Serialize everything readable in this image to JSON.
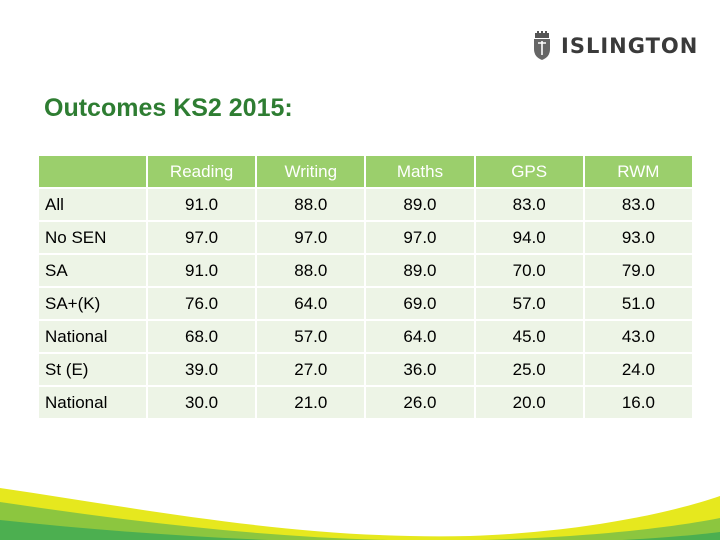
{
  "brand": {
    "name": "ISLINGTON",
    "colors": {
      "title": "#2e7d32",
      "header_fill": "#9bcf6c",
      "row_fill": "#edf4e6",
      "swoosh_green": "#8cc63f",
      "swoosh_yellow": "#e6e81e"
    }
  },
  "title": "Outcomes KS2 2015:",
  "table": {
    "headers": [
      "",
      "Reading",
      "Writing",
      "Maths",
      "GPS",
      "RWM"
    ],
    "rows": [
      [
        "All",
        "91.0",
        "88.0",
        "89.0",
        "83.0",
        "83.0"
      ],
      [
        "No SEN",
        "97.0",
        "97.0",
        "97.0",
        "94.0",
        "93.0"
      ],
      [
        "SA",
        "91.0",
        "88.0",
        "89.0",
        "70.0",
        "79.0"
      ],
      [
        "SA+(K)",
        "76.0",
        "64.0",
        "69.0",
        "57.0",
        "51.0"
      ],
      [
        "National",
        "68.0",
        "57.0",
        "64.0",
        "45.0",
        "43.0"
      ],
      [
        "St (E)",
        "39.0",
        "27.0",
        "36.0",
        "25.0",
        "24.0"
      ],
      [
        "National",
        "30.0",
        "21.0",
        "26.0",
        "20.0",
        "16.0"
      ]
    ]
  }
}
